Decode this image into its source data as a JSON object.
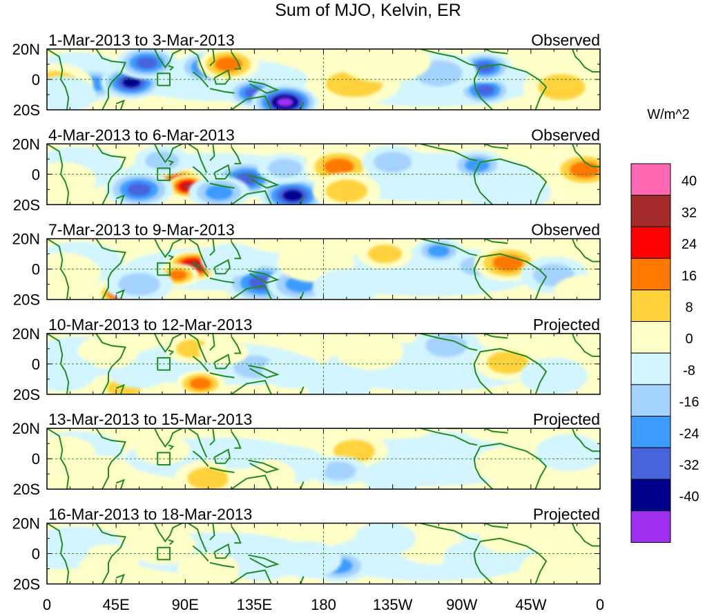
{
  "chart_data": {
    "type": "heatmap",
    "title": "Sum of MJO, Kelvin, ER",
    "colorbar": {
      "unit_label": "W/m^2",
      "levels": [
        "40",
        "32",
        "24",
        "16",
        "8",
        "0",
        "-8",
        "-16",
        "-24",
        "-32",
        "-40"
      ],
      "colors": [
        "#ff69b4",
        "#a52a2a",
        "#ff0000",
        "#ff7800",
        "#ffd23c",
        "#ffffc8",
        "#d2f5ff",
        "#a5d2ff",
        "#3c9bff",
        "#4664dc",
        "#00008c",
        "#a030f0"
      ]
    },
    "x_axis": {
      "ticks": [
        "0",
        "45E",
        "90E",
        "135E",
        "180",
        "135W",
        "90W",
        "45W",
        "0"
      ],
      "range_degrees_east": [
        0,
        360
      ]
    },
    "y_axis": {
      "ticks": [
        "20N",
        "0",
        "20S"
      ],
      "range_degrees": [
        -20,
        20
      ]
    },
    "panels": [
      {
        "date_range": "1-Mar-2013 to 3-Mar-2013",
        "status": "Observed",
        "anomalies": [
          [
            30,
            -3,
            20,
            -24
          ],
          [
            55,
            -2,
            20,
            -40
          ],
          [
            65,
            11,
            20,
            -28
          ],
          [
            105,
            8,
            20,
            -32
          ],
          [
            135,
            -9,
            18,
            -32
          ],
          [
            155,
            -15,
            22,
            -44
          ],
          [
            118,
            10,
            20,
            24
          ],
          [
            200,
            -3,
            30,
            16
          ],
          [
            285,
            -7,
            18,
            -32
          ],
          [
            285,
            8,
            18,
            -28
          ],
          [
            255,
            4,
            25,
            -12
          ],
          [
            335,
            -5,
            25,
            16
          ],
          [
            5,
            -3,
            25,
            16
          ],
          [
            220,
            12,
            30,
            8
          ],
          [
            10,
            -10,
            22,
            -8
          ]
        ]
      },
      {
        "date_range": "4-Mar-2013 to 6-Mar-2013",
        "status": "Observed",
        "anomalies": [
          [
            85,
            -5,
            18,
            28
          ],
          [
            92,
            -8,
            14,
            36
          ],
          [
            60,
            -10,
            22,
            -32
          ],
          [
            130,
            -3,
            22,
            -32
          ],
          [
            160,
            -14,
            22,
            -40
          ],
          [
            112,
            -12,
            20,
            -24
          ],
          [
            155,
            4,
            18,
            -16
          ],
          [
            75,
            9,
            18,
            -16
          ],
          [
            190,
            5,
            22,
            24
          ],
          [
            225,
            8,
            20,
            -12
          ],
          [
            280,
            6,
            18,
            -20
          ],
          [
            350,
            3,
            22,
            24
          ],
          [
            10,
            -4,
            22,
            8
          ],
          [
            195,
            -11,
            22,
            16
          ],
          [
            300,
            -12,
            28,
            -8
          ]
        ]
      },
      {
        "date_range": "7-Mar-2013 to 9-Mar-2013",
        "status": "Observed",
        "anomalies": [
          [
            95,
            2,
            18,
            36
          ],
          [
            85,
            -4,
            14,
            24
          ],
          [
            140,
            -9,
            25,
            -32
          ],
          [
            165,
            -10,
            22,
            -24
          ],
          [
            48,
            -16,
            16,
            32
          ],
          [
            60,
            -10,
            22,
            -16
          ],
          [
            120,
            6,
            20,
            -8
          ],
          [
            220,
            10,
            18,
            16
          ],
          [
            255,
            12,
            16,
            -24
          ],
          [
            280,
            2,
            18,
            -16
          ],
          [
            300,
            4,
            22,
            24
          ],
          [
            330,
            -4,
            22,
            -16
          ],
          [
            10,
            -3,
            25,
            8
          ],
          [
            175,
            5,
            25,
            8
          ],
          [
            195,
            -12,
            22,
            -8
          ],
          [
            350,
            -15,
            20,
            8
          ]
        ]
      },
      {
        "date_range": "10-Mar-2013 to 12-Mar-2013",
        "status": "Projected",
        "anomalies": [
          [
            100,
            -13,
            16,
            24
          ],
          [
            95,
            10,
            18,
            12
          ],
          [
            50,
            -16,
            18,
            16
          ],
          [
            60,
            -5,
            20,
            -8
          ],
          [
            135,
            -2,
            22,
            -16
          ],
          [
            160,
            -5,
            20,
            -8
          ],
          [
            115,
            8,
            16,
            8
          ],
          [
            210,
            8,
            22,
            8
          ],
          [
            260,
            12,
            22,
            -12
          ],
          [
            300,
            1,
            22,
            16
          ],
          [
            330,
            -8,
            22,
            -8
          ],
          [
            40,
            8,
            20,
            8
          ],
          [
            10,
            -6,
            22,
            -8
          ],
          [
            190,
            -13,
            22,
            -8
          ]
        ]
      },
      {
        "date_range": "13-Mar-2013 to 15-Mar-2013",
        "status": "Projected",
        "anomalies": [
          [
            105,
            -13,
            22,
            16
          ],
          [
            200,
            5,
            22,
            12
          ],
          [
            190,
            -8,
            18,
            -12
          ],
          [
            160,
            -4,
            22,
            -8
          ],
          [
            225,
            -12,
            20,
            -8
          ],
          [
            75,
            6,
            18,
            8
          ],
          [
            140,
            -12,
            22,
            8
          ],
          [
            260,
            6,
            22,
            -8
          ],
          [
            35,
            -10,
            22,
            8
          ],
          [
            300,
            -4,
            22,
            8
          ],
          [
            340,
            4,
            22,
            -8
          ],
          [
            10,
            3,
            22,
            8
          ],
          [
            125,
            3,
            18,
            -8
          ]
        ]
      },
      {
        "date_range": "16-Mar-2013 to 18-Mar-2013",
        "status": "Projected",
        "anomalies": [
          [
            190,
            -8,
            20,
            -24
          ],
          [
            170,
            -4,
            22,
            -8
          ],
          [
            140,
            -6,
            22,
            -8
          ],
          [
            105,
            -10,
            20,
            8
          ],
          [
            75,
            5,
            22,
            8
          ],
          [
            40,
            -5,
            20,
            8
          ],
          [
            250,
            5,
            22,
            8
          ],
          [
            280,
            -3,
            22,
            -8
          ],
          [
            330,
            -10,
            22,
            8
          ],
          [
            5,
            2,
            22,
            -8
          ],
          [
            220,
            10,
            20,
            -8
          ],
          [
            300,
            10,
            18,
            8
          ]
        ]
      }
    ]
  }
}
